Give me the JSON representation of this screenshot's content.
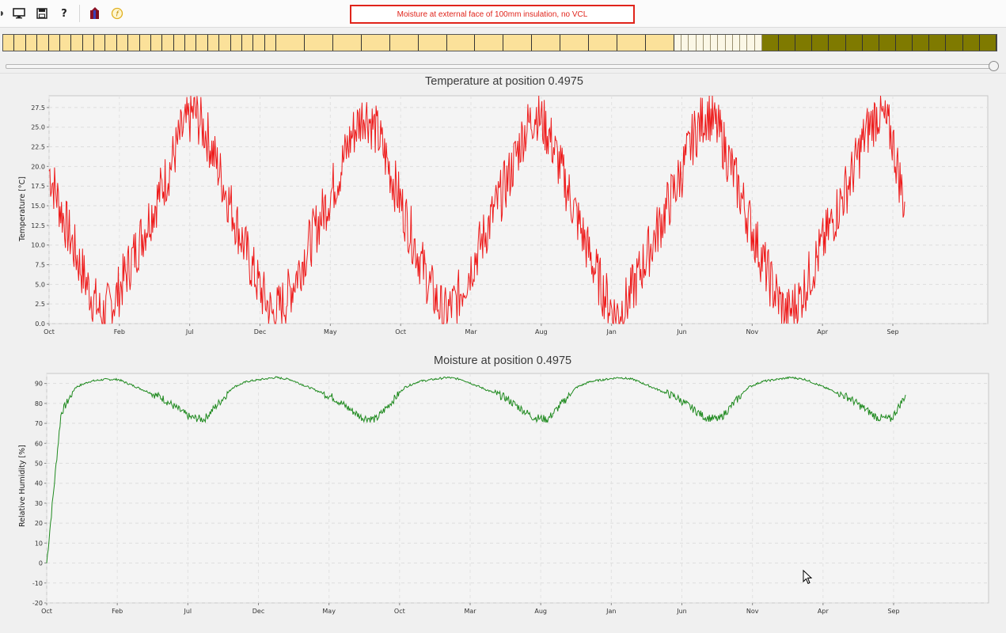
{
  "toolbar": {
    "items": [
      {
        "name": "monitor-icon"
      },
      {
        "name": "save-icon"
      },
      {
        "name": "help-icon",
        "glyph": "?"
      },
      {
        "name": "wall-layers-icon"
      },
      {
        "name": "info-icon",
        "glyph": "f"
      }
    ]
  },
  "status_title": "Moisture at external face of 100mm insulation, no VCL",
  "layer_mesh": {
    "segments": [
      {
        "layer": "insulation-1",
        "color": "#fbe19a",
        "cells": 24
      },
      {
        "layer": "insulation-2",
        "color": "#fbe19a",
        "cells": 14
      },
      {
        "layer": "membrane",
        "color": "#fbf7e6",
        "cells": 12
      },
      {
        "layer": "masonry",
        "color": "#7f7a00",
        "cells": 14
      }
    ]
  },
  "slider": {
    "value": 1.0
  },
  "charts": {
    "temperature": {
      "title": "Temperature at position 0.4975",
      "ylabel": "Temperature [°C]",
      "yticks": [
        "0.0",
        "2.5",
        "5.0",
        "7.5",
        "10.0",
        "12.5",
        "15.0",
        "17.5",
        "20.0",
        "22.5",
        "25.0",
        "27.5"
      ],
      "xticks": [
        "Oct",
        "Feb",
        "Jul",
        "Dec",
        "May",
        "Oct",
        "Mar",
        "Aug",
        "Jan",
        "Jun",
        "Nov",
        "Apr",
        "Sep"
      ],
      "color": "#ee1c1c"
    },
    "moisture": {
      "title": "Moisture at position 0.4975",
      "ylabel": "Relative Humidity [%]",
      "yticks": [
        "-20",
        "-10",
        "0",
        "10",
        "20",
        "30",
        "40",
        "50",
        "60",
        "70",
        "80",
        "90"
      ],
      "xticks": [
        "Oct",
        "Feb",
        "Jul",
        "Dec",
        "May",
        "Oct",
        "Mar",
        "Aug",
        "Jan",
        "Jun",
        "Nov",
        "Apr",
        "Sep"
      ],
      "color": "#1f8a1f"
    }
  },
  "chart_data": [
    {
      "type": "line",
      "title": "Temperature at position 0.4975",
      "xlabel": "",
      "ylabel": "Temperature [°C]",
      "ylim": [
        0,
        29
      ],
      "x_ticks": [
        "Oct",
        "Feb",
        "Jul",
        "Dec",
        "May",
        "Oct",
        "Mar",
        "Aug",
        "Jan",
        "Jun",
        "Nov",
        "Apr",
        "Sep"
      ],
      "grid": true,
      "series": [
        {
          "values_by_month_approx": [
            19.5,
            14,
            9,
            4.5,
            1,
            3,
            7,
            11,
            15,
            19,
            24,
            27,
            24,
            19,
            14,
            9,
            4.5,
            1,
            3,
            7,
            11,
            15,
            19,
            24,
            27,
            24,
            19,
            14,
            9,
            4.5,
            1,
            3,
            7,
            11,
            15,
            19,
            24,
            27,
            24,
            19,
            14,
            9,
            4.5,
            1,
            3,
            7,
            11,
            15,
            19,
            24,
            27,
            24,
            19,
            14,
            9,
            4.5,
            1,
            3,
            7,
            11,
            15,
            19,
            24,
            27,
            24,
            15
          ]
        }
      ]
    },
    {
      "type": "line",
      "title": "Moisture at position 0.4975",
      "xlabel": "",
      "ylabel": "Relative Humidity [%]",
      "ylim": [
        -20,
        95
      ],
      "x_ticks": [
        "Oct",
        "Feb",
        "Jul",
        "Dec",
        "May",
        "Oct",
        "Mar",
        "Aug",
        "Jan",
        "Jun",
        "Nov",
        "Apr",
        "Sep"
      ],
      "grid": true,
      "series": [
        {
          "values_by_month_approx": [
            0,
            75,
            88,
            91,
            92,
            92,
            89,
            86,
            83,
            78,
            73,
            72,
            80,
            88,
            91,
            92,
            93,
            92,
            89,
            86,
            83,
            78,
            73,
            72,
            80,
            88,
            91,
            92,
            93,
            92,
            89,
            86,
            83,
            78,
            73,
            72,
            80,
            88,
            91,
            92,
            93,
            92,
            89,
            86,
            83,
            78,
            73,
            72,
            80,
            88,
            91,
            92,
            93,
            92,
            89,
            86,
            83,
            78,
            73,
            72,
            84
          ]
        }
      ]
    }
  ]
}
